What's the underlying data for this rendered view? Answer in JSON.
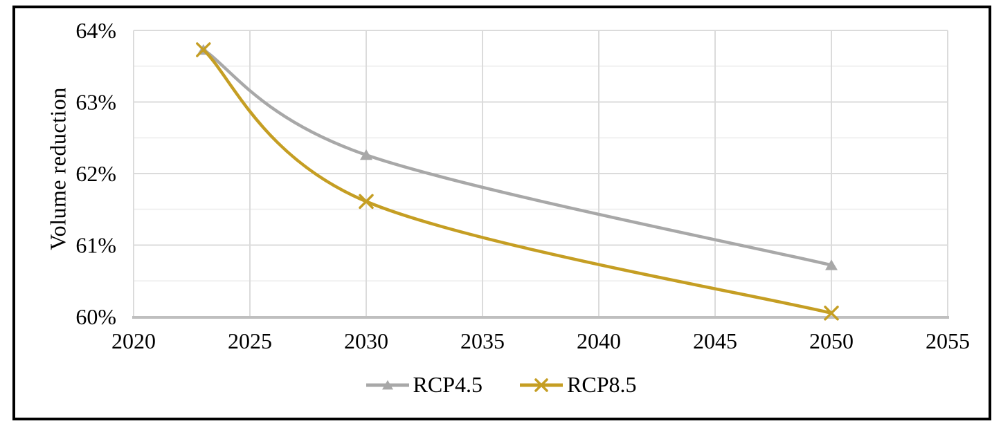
{
  "chart_data": {
    "type": "line",
    "title": "",
    "xlabel": "",
    "ylabel": "Volume reduction",
    "smoothed": true,
    "grid": true,
    "legend_position": "bottom",
    "xlim": [
      2020,
      2055
    ],
    "ylim": [
      60,
      64
    ],
    "y_minor_step": 0.5,
    "x_ticks": [
      {
        "label": "2020",
        "value": 2020
      },
      {
        "label": "2025",
        "value": 2025
      },
      {
        "label": "2030",
        "value": 2030
      },
      {
        "label": "2035",
        "value": 2035
      },
      {
        "label": "2040",
        "value": 2040
      },
      {
        "label": "2045",
        "value": 2045
      },
      {
        "label": "2050",
        "value": 2050
      },
      {
        "label": "2055",
        "value": 2055
      }
    ],
    "y_ticks": [
      {
        "label": "64%",
        "value": 64
      },
      {
        "label": "63%",
        "value": 63
      },
      {
        "label": "62%",
        "value": 62
      },
      {
        "label": "61%",
        "value": 61
      },
      {
        "label": "60%",
        "value": 60
      }
    ],
    "x": [
      2023,
      2030,
      2050
    ],
    "series": [
      {
        "name": "RCP4.5",
        "marker": "triangle",
        "color": "#A8A8A8",
        "values": [
          63.73,
          62.26,
          60.72
        ]
      },
      {
        "name": "RCP8.5",
        "marker": "x",
        "color": "#C59E23",
        "values": [
          63.73,
          61.61,
          60.05
        ]
      }
    ]
  },
  "colors": {
    "grid_major": "#DBDBDB",
    "grid_minor": "#F0F0F0",
    "axis_line": "#BFBFBF",
    "frame": "#000000",
    "background": "#FFFFFF"
  }
}
